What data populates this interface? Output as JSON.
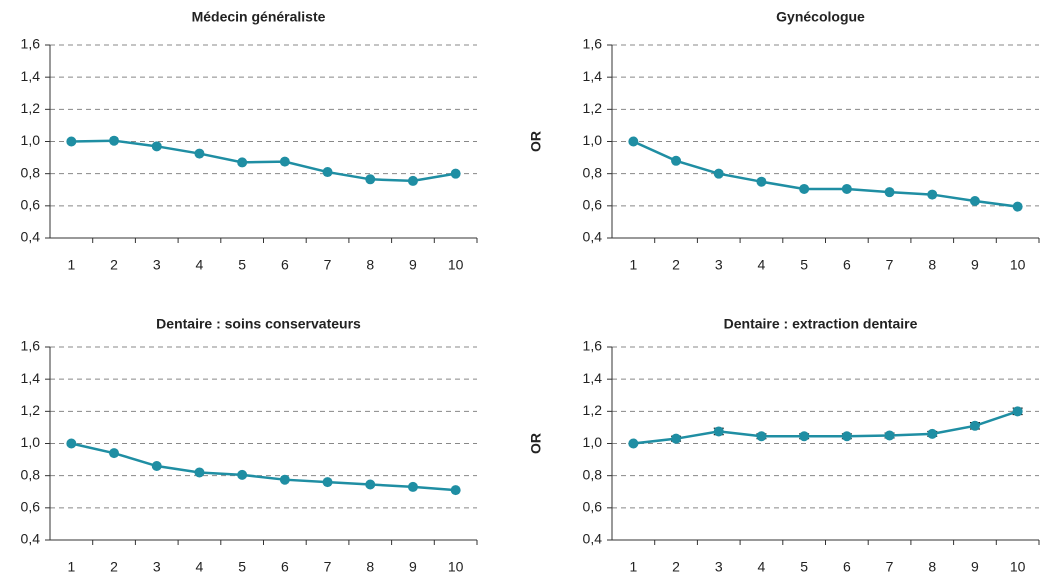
{
  "chart_data": [
    {
      "type": "line",
      "title": "Médecin généraliste",
      "categories": [
        1,
        2,
        3,
        4,
        5,
        6,
        7,
        8,
        9,
        10
      ],
      "series": [
        {
          "color": "#1f8ea3",
          "values": [
            1.0,
            1.005,
            0.97,
            0.925,
            0.87,
            0.875,
            0.81,
            0.765,
            0.755,
            0.8
          ]
        }
      ],
      "ylim": [
        0.4,
        1.6
      ],
      "yticks": [
        {
          "value": 0.4,
          "label": "0,4"
        },
        {
          "value": 0.6,
          "label": "0,6"
        },
        {
          "value": 0.8,
          "label": "0,8"
        },
        {
          "value": 1.0,
          "label": "1,0"
        },
        {
          "value": 1.2,
          "label": "1,2"
        },
        {
          "value": 1.4,
          "label": "1,4"
        },
        {
          "value": 1.6,
          "label": "1,6"
        }
      ],
      "grid": true
    },
    {
      "type": "line",
      "title": "Gynécologue",
      "ylabel": "OR",
      "categories": [
        1,
        2,
        3,
        4,
        5,
        6,
        7,
        8,
        9,
        10
      ],
      "series": [
        {
          "color": "#1f8ea3",
          "values": [
            1.0,
            0.88,
            0.8,
            0.75,
            0.705,
            0.705,
            0.685,
            0.67,
            0.63,
            0.595
          ]
        }
      ],
      "ylim": [
        0.4,
        1.6
      ],
      "yticks": [
        {
          "value": 0.4,
          "label": "0,4"
        },
        {
          "value": 0.6,
          "label": "0,6"
        },
        {
          "value": 0.8,
          "label": "0,8"
        },
        {
          "value": 1.0,
          "label": "1,0"
        },
        {
          "value": 1.2,
          "label": "1,2"
        },
        {
          "value": 1.4,
          "label": "1,4"
        },
        {
          "value": 1.6,
          "label": "1,6"
        }
      ],
      "grid": true
    },
    {
      "type": "line",
      "title": "Dentaire : soins conservateurs",
      "categories": [
        1,
        2,
        3,
        4,
        5,
        6,
        7,
        8,
        9,
        10
      ],
      "series": [
        {
          "color": "#1f8ea3",
          "values": [
            1.0,
            0.94,
            0.86,
            0.82,
            0.805,
            0.775,
            0.76,
            0.745,
            0.73,
            0.71
          ]
        }
      ],
      "ylim": [
        0.4,
        1.6
      ],
      "yticks": [
        {
          "value": 0.4,
          "label": "0,4"
        },
        {
          "value": 0.6,
          "label": "0,6"
        },
        {
          "value": 0.8,
          "label": "0,8"
        },
        {
          "value": 1.0,
          "label": "1,0"
        },
        {
          "value": 1.2,
          "label": "1,2"
        },
        {
          "value": 1.4,
          "label": "1,4"
        },
        {
          "value": 1.6,
          "label": "1,6"
        }
      ],
      "grid": true
    },
    {
      "type": "line",
      "title": "Dentaire : extraction dentaire",
      "ylabel": "OR",
      "categories": [
        1,
        2,
        3,
        4,
        5,
        6,
        7,
        8,
        9,
        10
      ],
      "series": [
        {
          "color": "#1f8ea3",
          "values": [
            1.0,
            1.03,
            1.075,
            1.045,
            1.045,
            1.045,
            1.05,
            1.06,
            1.11,
            1.2
          ],
          "errors": [
            0,
            0.015,
            0.02,
            0.015,
            0.015,
            0.015,
            0.015,
            0.015,
            0.02,
            0.02
          ]
        }
      ],
      "ylim": [
        0.4,
        1.6
      ],
      "yticks": [
        {
          "value": 0.4,
          "label": "0,4"
        },
        {
          "value": 0.6,
          "label": "0,6"
        },
        {
          "value": 0.8,
          "label": "0,8"
        },
        {
          "value": 1.0,
          "label": "1,0"
        },
        {
          "value": 1.2,
          "label": "1,2"
        },
        {
          "value": 1.4,
          "label": "1,4"
        },
        {
          "value": 1.6,
          "label": "1,6"
        }
      ],
      "grid": true
    }
  ]
}
